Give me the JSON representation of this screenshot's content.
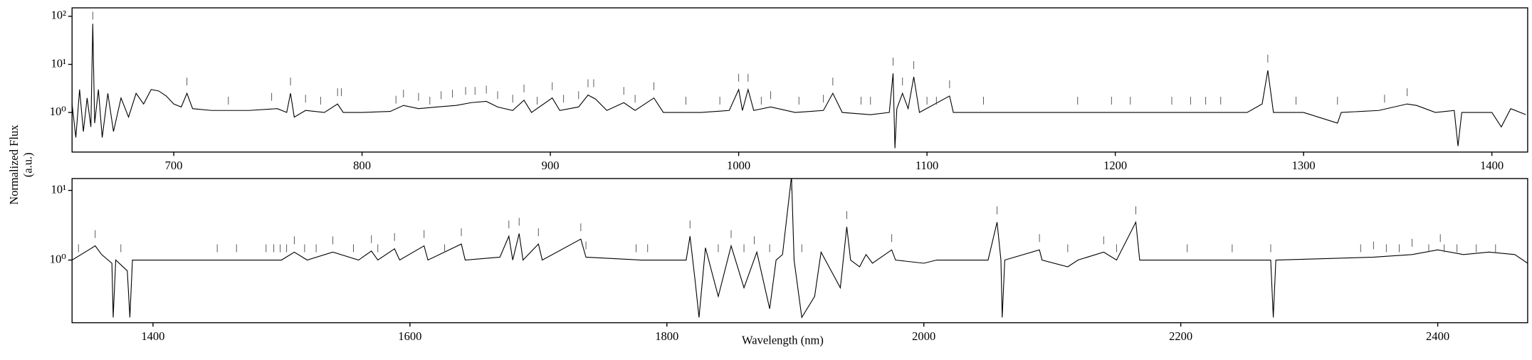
{
  "chart_data": [
    {
      "type": "line",
      "log_y": true,
      "color": "#000000",
      "ylabel": [
        "Normalized Flux",
        "(a.u.)"
      ],
      "xlim": [
        646,
        1419
      ],
      "ylim": [
        0.15,
        150
      ],
      "xticks": [
        700,
        800,
        900,
        1000,
        1100,
        1200,
        1300,
        1400
      ],
      "yticks": [
        {
          "value": 1,
          "label": "10⁰"
        },
        {
          "value": 10,
          "label": "10¹"
        },
        {
          "value": 100,
          "label": "10²"
        }
      ],
      "x": [
        646,
        648,
        650,
        652,
        654,
        656,
        657,
        658,
        660,
        662,
        665,
        668,
        672,
        676,
        680,
        684,
        688,
        692,
        696,
        700,
        704,
        707,
        710,
        720,
        740,
        755,
        760,
        762,
        764,
        770,
        780,
        787,
        790,
        800,
        815,
        822,
        830,
        840,
        850,
        858,
        866,
        872,
        880,
        886,
        890,
        901,
        905,
        915,
        920,
        924,
        930,
        939,
        945,
        955,
        960,
        980,
        995,
        1000,
        1002,
        1005,
        1008,
        1017,
        1030,
        1045,
        1050,
        1055,
        1070,
        1080,
        1082,
        1083,
        1084,
        1087,
        1090,
        1093,
        1096,
        1112,
        1114,
        1130,
        1200,
        1270,
        1278,
        1281,
        1284,
        1300,
        1318,
        1320,
        1340,
        1355,
        1360,
        1370,
        1380,
        1382,
        1384,
        1400,
        1405,
        1410,
        1418
      ],
      "series": [
        {
          "values": [
            1.5,
            0.3,
            3,
            0.4,
            2,
            0.5,
            70,
            0.6,
            3,
            0.3,
            2.5,
            0.4,
            2,
            0.8,
            2.5,
            1.5,
            3,
            2.8,
            2.2,
            1.5,
            1.3,
            2.5,
            1.2,
            1.1,
            1.1,
            1.2,
            1.0,
            2.5,
            0.8,
            1.1,
            1.0,
            1.5,
            1.0,
            1.0,
            1.05,
            1.4,
            1.2,
            1.3,
            1.4,
            1.6,
            1.7,
            1.3,
            1.1,
            1.8,
            1.0,
            2.0,
            1.1,
            1.3,
            2.3,
            1.9,
            1.1,
            1.6,
            1.1,
            2.0,
            1.0,
            1.0,
            1.1,
            3.0,
            1.1,
            3.0,
            1.1,
            1.3,
            1.0,
            1.1,
            2.5,
            1.0,
            0.9,
            1.0,
            6.5,
            0.18,
            1.2,
            2.5,
            1.2,
            5.5,
            1.0,
            2.2,
            1.0,
            1.0,
            1.0,
            1.0,
            1.5,
            7.5,
            1.0,
            1.0,
            0.6,
            1.0,
            1.1,
            1.5,
            1.4,
            1.0,
            1.1,
            0.2,
            1.0,
            1.0,
            0.5,
            1.2,
            0.9
          ]
        }
      ],
      "markers": [
        657,
        707,
        729,
        752,
        762,
        770,
        778,
        787,
        789,
        818,
        822,
        830,
        836,
        842,
        848,
        855,
        860,
        866,
        872,
        880,
        886,
        893,
        901,
        907,
        915,
        920,
        923,
        939,
        945,
        955,
        972,
        990,
        1000,
        1005,
        1012,
        1017,
        1032,
        1045,
        1050,
        1065,
        1070,
        1082,
        1087,
        1093,
        1100,
        1105,
        1112,
        1130,
        1180,
        1198,
        1208,
        1230,
        1240,
        1248,
        1256,
        1281,
        1296,
        1318,
        1343,
        1355
      ]
    },
    {
      "type": "line",
      "log_y": true,
      "color": "#000000",
      "xlabel": "Wavelength (nm)",
      "xlim": [
        1337,
        2470
      ],
      "ylim": [
        0.126,
        14.8
      ],
      "xticks": [
        1400,
        1600,
        1800,
        2000,
        2200,
        2400
      ],
      "yticks": [
        {
          "value": 1,
          "label": "10⁰"
        },
        {
          "value": 10,
          "label": "10¹"
        }
      ],
      "x": [
        1337,
        1350,
        1355,
        1360,
        1368,
        1369,
        1371,
        1380,
        1382,
        1384,
        1400,
        1450,
        1500,
        1510,
        1520,
        1540,
        1560,
        1570,
        1575,
        1588,
        1592,
        1611,
        1614,
        1640,
        1643,
        1670,
        1677,
        1680,
        1685,
        1688,
        1700,
        1703,
        1733,
        1737,
        1780,
        1815,
        1818,
        1822,
        1825,
        1830,
        1840,
        1850,
        1860,
        1870,
        1880,
        1885,
        1890,
        1897,
        1899,
        1905,
        1915,
        1920,
        1935,
        1940,
        1943,
        1950,
        1955,
        1960,
        1975,
        1978,
        2000,
        2010,
        2050,
        2057,
        2060,
        2061,
        2063,
        2090,
        2092,
        2112,
        2120,
        2140,
        2150,
        2165,
        2168,
        2200,
        2270,
        2272,
        2274,
        2350,
        2380,
        2400,
        2420,
        2440,
        2460,
        2470
      ],
      "series": [
        {
          "values": [
            1.0,
            1.4,
            1.6,
            1.2,
            0.9,
            0.15,
            1.0,
            0.7,
            0.15,
            1.0,
            1.0,
            1.0,
            1.0,
            1.3,
            1.0,
            1.3,
            1.0,
            1.35,
            1.0,
            1.45,
            1.0,
            1.6,
            1.0,
            1.7,
            1.0,
            1.1,
            2.2,
            1.0,
            2.4,
            1.0,
            1.7,
            1.0,
            2.0,
            1.1,
            1.0,
            1.0,
            2.2,
            0.5,
            0.15,
            1.5,
            0.3,
            1.6,
            0.4,
            1.3,
            0.2,
            1.0,
            1.2,
            16,
            1.0,
            0.15,
            0.3,
            1.3,
            0.4,
            3.0,
            1.0,
            0.8,
            1.2,
            0.9,
            1.4,
            1.0,
            0.9,
            1.0,
            1.0,
            3.5,
            1.0,
            0.15,
            1.0,
            1.4,
            1.0,
            0.8,
            1.0,
            1.3,
            1.0,
            3.5,
            1.0,
            1.0,
            1.0,
            0.15,
            1.0,
            1.1,
            1.2,
            1.4,
            1.2,
            1.3,
            1.2,
            0.9
          ]
        }
      ],
      "markers": [
        1342,
        1355,
        1375,
        1450,
        1465,
        1488,
        1494,
        1499,
        1504,
        1510,
        1518,
        1527,
        1540,
        1556,
        1570,
        1575,
        1588,
        1611,
        1627,
        1640,
        1677,
        1685,
        1700,
        1733,
        1737,
        1776,
        1785,
        1818,
        1840,
        1850,
        1860,
        1868,
        1880,
        1897,
        1905,
        1940,
        1975,
        2057,
        2090,
        2112,
        2140,
        2150,
        2165,
        2205,
        2240,
        2270,
        2340,
        2350,
        2360,
        2370,
        2380,
        2393,
        2402,
        2405,
        2415,
        2430,
        2445
      ]
    }
  ]
}
